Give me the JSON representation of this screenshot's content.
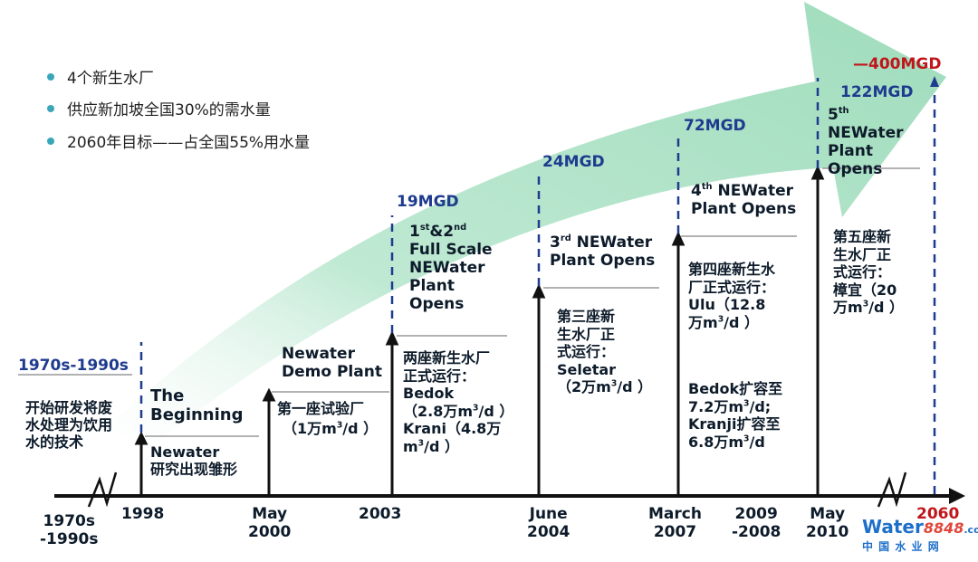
{
  "bullets": [
    "4个新生水厂",
    "供应新加坡全国30%的需水量",
    "2060年目标——占全国55%用水量"
  ],
  "period_header": "1970s-1990s",
  "period_text": [
    "开始研发将废",
    "水处理为饮用",
    "水的技术"
  ],
  "axis_labels": {
    "l1970": [
      "1970s",
      "-1990s"
    ],
    "l1998": "1998",
    "l2000": [
      "May",
      "2000"
    ],
    "l2003": "2003",
    "l2004": [
      "June",
      "2004"
    ],
    "l2007": [
      "March",
      "2007"
    ],
    "l2009": [
      "2009",
      "-2008"
    ],
    "l2010": [
      "May",
      "2010"
    ],
    "l2060": "2060"
  },
  "capacities": {
    "c2003": "19MGD",
    "c2004": "24MGD",
    "c2007": "72MGD",
    "c2010": "122MGD",
    "c2060": "—400MGD"
  },
  "milestones": {
    "m1998_en": [
      "The",
      "Beginning"
    ],
    "m1998_cn": [
      "Newater",
      "研究出现雏形"
    ],
    "m2000_en": [
      "Newater",
      "Demo Plant"
    ],
    "m2000_cn1": "第一座试验厂",
    "m2000_cn2_pre": "（1万m",
    "m2000_cn2_post": "/d ）",
    "m2003_en_l1a": "1",
    "m2003_en_l1b": "st",
    "m2003_en_l1c": "&2",
    "m2003_en_l1d": "nd",
    "m2003_en_rest": [
      "Full Scale",
      "NEWater",
      "Plant",
      "Opens"
    ],
    "m2003_cn": [
      "两座新生水厂",
      "正式运行：",
      "Bedok"
    ],
    "m2003_cn4_pre": "（2.8万m",
    "m2003_cn4_post": "/d ）",
    "m2003_cn5": "Krani（4.8万",
    "m2003_cn6_pre": "m",
    "m2003_cn6_post": "/d ）",
    "m2004_en_a": "3",
    "m2004_en_b": "rd",
    "m2004_en_c": " NEWater",
    "m2004_en_2": "Plant Opens",
    "m2004_cn": [
      "第三座新",
      "生水厂正",
      "式运行：",
      "Seletar"
    ],
    "m2004_cn5_pre": "（2万m",
    "m2004_cn5_post": "/d ）",
    "m2007_en_a": "4",
    "m2007_en_b": "th",
    "m2007_en_c": " NEWater",
    "m2007_en_2": "Plant Opens",
    "m2007_cn": [
      "第四座新生水",
      "厂正式运行：",
      "Ulu（12.8"
    ],
    "m2007_cn4_pre": "万m",
    "m2007_cn4_post": "/d ）",
    "m2009_cn1": "Bedok扩容至",
    "m2009_cn2_pre": "7.2万m",
    "m2009_cn2_post": "/d;",
    "m2009_cn3": "Kranji扩容至",
    "m2009_cn4_pre": "6.8万m",
    "m2009_cn4_post": "/d",
    "m2010_en_a": "5",
    "m2010_en_b": "th",
    "m2010_en_rest": [
      "NEWater",
      "Plant",
      "Opens"
    ],
    "m2010_cn": [
      "第五座新",
      "生水厂正",
      "式运行：",
      "樟宜（20"
    ],
    "m2010_cn5_pre": "万m",
    "m2010_cn5_post": "/d ）",
    "sup3": "3"
  },
  "logo": {
    "water": "Water",
    "num": "8848",
    "dotcom": ".com",
    "cn": "中 国 水 业 网"
  },
  "colors": {
    "arrow": "#a8e0c4",
    "axis": "#111111",
    "capacity": "#1f3b8f",
    "target": "#c0161b"
  }
}
